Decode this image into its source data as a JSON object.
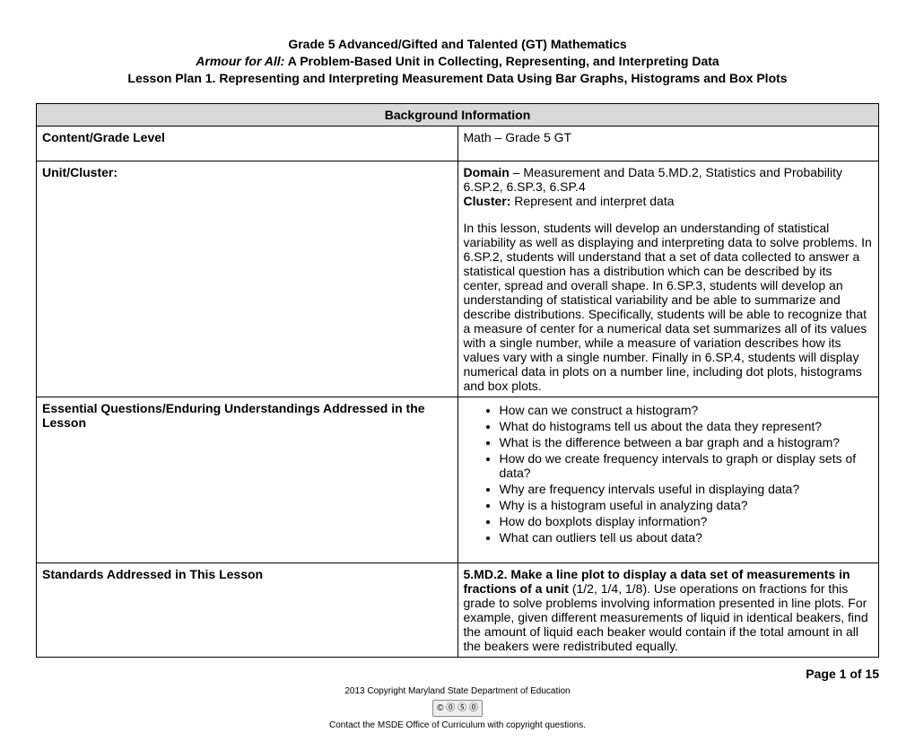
{
  "header": {
    "line1": "Grade 5 Advanced/Gifted and Talented (GT) Mathematics",
    "line2_italic": "Armour for All:",
    "line2_rest": " A Problem-Based Unit in Collecting, Representing, and Interpreting Data",
    "line3": "Lesson Plan 1. Representing and Interpreting Measurement Data Using Bar Graphs, Histograms and Box Plots"
  },
  "section_header": "Background Information",
  "rows": {
    "content_grade": {
      "label": "Content/Grade Level",
      "value": "Math – Grade 5 GT"
    },
    "unit_cluster": {
      "label": "Unit/Cluster:",
      "domain_label": "Domain",
      "domain_text": " – Measurement and Data 5.MD.2, Statistics and Probability 6.SP.2, 6.SP.3, 6.SP.4",
      "cluster_label": "Cluster:",
      "cluster_text": " Represent and interpret data",
      "paragraph": "In this lesson, students will develop an understanding of statistical variability as well as displaying and interpreting data to solve problems. In 6.SP.2, students will understand that a set of data collected to answer a statistical question has a distribution which can be described by its center, spread and overall shape. In 6.SP.3, students will develop an understanding of statistical variability and be able to summarize and describe distributions. Specifically, students will be able to recognize that a measure of center for a numerical data set summarizes all of its values with a single number, while a measure of variation describes how its values vary with a single number. Finally in 6.SP.4, students will display numerical data in plots on a number line, including dot plots, histograms and box plots."
    },
    "essential_questions": {
      "label": "Essential Questions/Enduring Understandings Addressed in the Lesson",
      "items": [
        "How can we construct a histogram?",
        "What do histograms tell us about the data they represent?",
        "What is the difference between a bar graph and a histogram?",
        "How do we create frequency intervals to graph or display sets of data?",
        "Why are frequency intervals useful in displaying data?",
        "Why is a histogram useful in analyzing data?",
        "How do boxplots display information?",
        "What can outliers tell us about data?"
      ]
    },
    "standards": {
      "label": "Standards Addressed in This Lesson",
      "bold_lead": "5.MD.2.  Make a line plot to display a data set of measurements in fractions of a unit",
      "rest": " (1/2, 1/4, 1/8). Use operations on fractions for this grade to solve problems involving information presented in line plots. For example, given different measurements of liquid in identical beakers, find the amount of liquid each beaker would contain if the total amount in all the beakers were redistributed equally."
    }
  },
  "footer": {
    "page": "Page 1 of 15",
    "copyright1": "2013 Copyright Maryland State Department of Education",
    "cc": "© ⓪ ⑤ ⓪",
    "copyright2": "Contact the MSDE Office of Curriculum with copyright questions."
  }
}
